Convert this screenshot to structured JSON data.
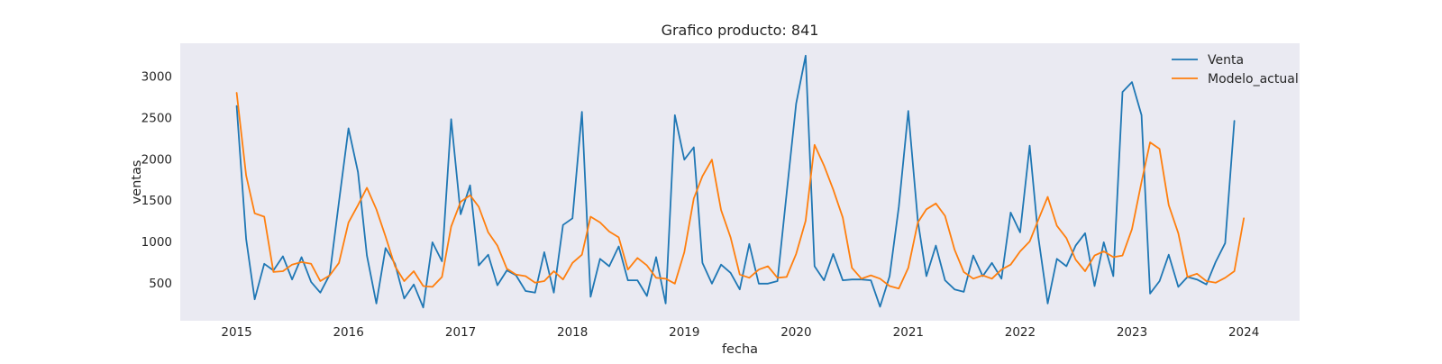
{
  "chart_data": {
    "type": "line",
    "title": "Grafico producto: 841",
    "xlabel": "fecha",
    "ylabel": "ventas",
    "xlim": [
      "2014-07-01",
      "2024-07-01"
    ],
    "ylim": [
      40,
      3400
    ],
    "grid": false,
    "legend_position": "top-right",
    "x_ticks": [
      "2015-01-01",
      "2016-01-01",
      "2017-01-01",
      "2018-01-01",
      "2019-01-01",
      "2020-01-01",
      "2021-01-01",
      "2022-01-01",
      "2023-01-01",
      "2024-01-01"
    ],
    "x_tick_labels": [
      "2015",
      "2016",
      "2017",
      "2018",
      "2019",
      "2020",
      "2021",
      "2022",
      "2023",
      "2024"
    ],
    "y_ticks": [
      500,
      1000,
      1500,
      2000,
      2500,
      3000
    ],
    "y_tick_labels": [
      "500",
      "1000",
      "1500",
      "2000",
      "2500",
      "3000"
    ],
    "x_start": "2015-01",
    "x_step": "1 month",
    "series": [
      {
        "name": "Venta",
        "color": "#1f77b4",
        "values": [
          2640,
          1030,
          300,
          730,
          650,
          820,
          540,
          810,
          510,
          380,
          600,
          1480,
          2370,
          1840,
          830,
          250,
          920,
          730,
          310,
          480,
          200,
          990,
          760,
          2480,
          1330,
          1680,
          710,
          840,
          470,
          650,
          590,
          400,
          380,
          870,
          380,
          1200,
          1280,
          2570,
          330,
          790,
          700,
          940,
          530,
          530,
          340,
          810,
          250,
          2530,
          1990,
          2140,
          740,
          490,
          720,
          620,
          420,
          970,
          490,
          490,
          520,
          1580,
          2670,
          3250,
          700,
          530,
          850,
          530,
          540,
          540,
          530,
          210,
          580,
          1420,
          2580,
          1250,
          580,
          950,
          530,
          420,
          390,
          830,
          580,
          740,
          550,
          1350,
          1110,
          2160,
          1060,
          250,
          790,
          700,
          950,
          1100,
          460,
          990,
          580,
          2810,
          2930,
          2530,
          370,
          520,
          840,
          450,
          570,
          540,
          480,
          750,
          980,
          2460
        ]
      },
      {
        "name": "Modelo_actual",
        "color": "#ff7f0e",
        "values": [
          2800,
          1800,
          1340,
          1300,
          630,
          640,
          720,
          750,
          730,
          520,
          590,
          740,
          1230,
          1440,
          1650,
          1390,
          1060,
          700,
          520,
          640,
          460,
          450,
          570,
          1180,
          1480,
          1560,
          1420,
          1110,
          950,
          670,
          600,
          580,
          500,
          520,
          640,
          540,
          740,
          840,
          1300,
          1230,
          1120,
          1050,
          660,
          800,
          710,
          560,
          550,
          490,
          870,
          1520,
          1790,
          1990,
          1380,
          1050,
          600,
          560,
          660,
          700,
          560,
          570,
          850,
          1250,
          2170,
          1920,
          1630,
          1290,
          680,
          550,
          590,
          550,
          460,
          430,
          680,
          1230,
          1390,
          1460,
          1310,
          900,
          630,
          550,
          590,
          550,
          660,
          720,
          880,
          1000,
          1260,
          1540,
          1190,
          1040,
          780,
          640,
          830,
          880,
          810,
          830,
          1150,
          1720,
          2200,
          2120,
          1440,
          1100,
          570,
          610,
          520,
          500,
          560,
          640,
          1280
        ]
      }
    ]
  }
}
